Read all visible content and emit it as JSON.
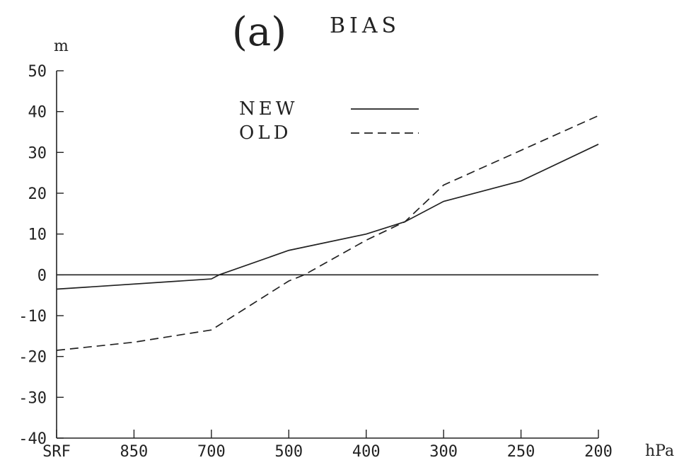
{
  "chart_data": {
    "type": "line",
    "panel_label": "(a)",
    "title": "BIAS",
    "ylabel": "m",
    "xlabel": "hPa",
    "categories": [
      "SRF",
      "850",
      "700",
      "500",
      "400",
      "300",
      "250",
      "200"
    ],
    "yticks": [
      "50",
      "40",
      "30",
      "20",
      "10",
      "0",
      "-10",
      "-20",
      "-30",
      "-40"
    ],
    "ylim": [
      -40,
      50
    ],
    "grid": false,
    "legend_position": "top-center",
    "series": [
      {
        "name": "NEW",
        "style": "solid",
        "points": [
          [
            0,
            -3.5
          ],
          [
            2,
            -1
          ],
          [
            2.1,
            0
          ],
          [
            3,
            6
          ],
          [
            4,
            10
          ],
          [
            4.5,
            13
          ],
          [
            5,
            18
          ],
          [
            6,
            23
          ],
          [
            7,
            32
          ]
        ]
      },
      {
        "name": "OLD",
        "style": "dashed",
        "points": [
          [
            0,
            -18.5
          ],
          [
            1,
            -16.5
          ],
          [
            2,
            -13.5
          ],
          [
            3,
            -1.5
          ],
          [
            3.2,
            0
          ],
          [
            4,
            8.5
          ],
          [
            4.5,
            13
          ],
          [
            5,
            22
          ],
          [
            6,
            30.5
          ],
          [
            7,
            39
          ]
        ]
      },
      {
        "name": "",
        "style": "solid",
        "points": [
          [
            0,
            0
          ],
          [
            7,
            0
          ]
        ]
      }
    ],
    "colors": {
      "ink": "#222222",
      "background": "#ffffff"
    }
  }
}
